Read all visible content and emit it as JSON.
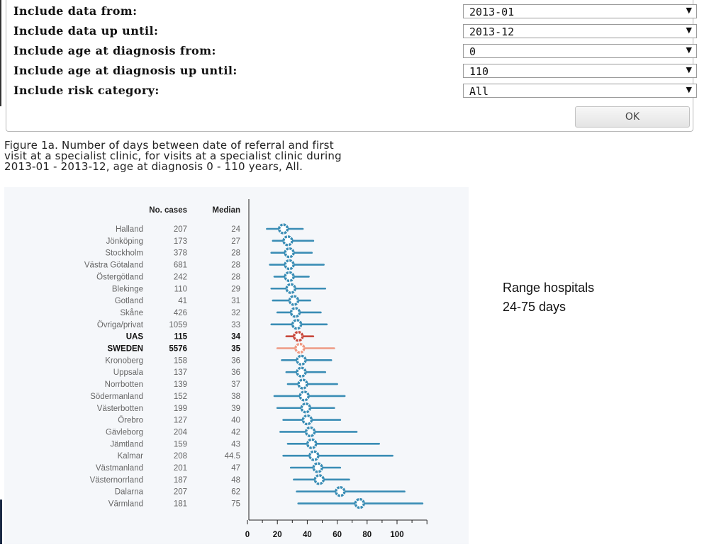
{
  "form": {
    "fields": [
      {
        "label": "Include data from:",
        "value": "2013-01"
      },
      {
        "label": "Include data up until:",
        "value": "2013-12"
      },
      {
        "label": "Include age at diagnosis from:",
        "value": "0"
      },
      {
        "label": "Include age at diagnosis up until:",
        "value": "110"
      },
      {
        "label": "Include risk category:",
        "value": "All"
      }
    ],
    "dropdown_arrow": "▼",
    "ok_label": "OK"
  },
  "caption": {
    "line1": "Figure 1a. Number of days between date of referral and first",
    "line2": "visit at a specialist clinic, for visits at a specialist clinic during",
    "line3": "2013-01 - 2013-12, age at diagnosis 0 - 110 years, All."
  },
  "note": {
    "line1": "Range hospitals",
    "line2": "24-75 days"
  },
  "chart_data": {
    "type": "scatter",
    "column_headers": {
      "cases": "No. cases",
      "median": "Median"
    },
    "x_ticks": [
      0,
      20,
      40,
      60,
      80,
      100
    ],
    "xlim": [
      0,
      120
    ],
    "colors": {
      "default": "#3a8db5",
      "uas": "#c8473b",
      "sweden": "#ef9a83"
    },
    "rows": [
      {
        "region": "Halland",
        "cases": "207",
        "median": "24",
        "median_value": 24,
        "low": 13,
        "high": 37
      },
      {
        "region": "Jönköping",
        "cases": "173",
        "median": "27",
        "median_value": 27,
        "low": 17,
        "high": 44
      },
      {
        "region": "Stockholm",
        "cases": "378",
        "median": "28",
        "median_value": 28,
        "low": 16,
        "high": 43
      },
      {
        "region": "Västra Götaland",
        "cases": "681",
        "median": "28",
        "median_value": 28,
        "low": 15,
        "high": 51
      },
      {
        "region": "Östergötland",
        "cases": "242",
        "median": "28",
        "median_value": 28,
        "low": 18,
        "high": 41
      },
      {
        "region": "Blekinge",
        "cases": "110",
        "median": "29",
        "median_value": 29,
        "low": 16,
        "high": 52
      },
      {
        "region": "Gotland",
        "cases": "41",
        "median": "31",
        "median_value": 31,
        "low": 17,
        "high": 42
      },
      {
        "region": "Skåne",
        "cases": "426",
        "median": "32",
        "median_value": 32,
        "low": 20,
        "high": 49
      },
      {
        "region": "Övriga/privat",
        "cases": "1059",
        "median": "33",
        "median_value": 33,
        "low": 16,
        "high": 53
      },
      {
        "region": "UAS",
        "cases": "115",
        "median": "34",
        "median_value": 34,
        "low": 26,
        "high": 44,
        "highlight": "uas"
      },
      {
        "region": "SWEDEN",
        "cases": "5576",
        "median": "35",
        "median_value": 35,
        "low": 20,
        "high": 58,
        "highlight": "sweden"
      },
      {
        "region": "Kronoberg",
        "cases": "158",
        "median": "36",
        "median_value": 36,
        "low": 23,
        "high": 56
      },
      {
        "region": "Uppsala",
        "cases": "137",
        "median": "36",
        "median_value": 36,
        "low": 26,
        "high": 52
      },
      {
        "region": "Norrbotten",
        "cases": "139",
        "median": "37",
        "median_value": 37,
        "low": 27,
        "high": 60
      },
      {
        "region": "Södermanland",
        "cases": "152",
        "median": "38",
        "median_value": 38,
        "low": 18,
        "high": 65
      },
      {
        "region": "Västerbotten",
        "cases": "199",
        "median": "39",
        "median_value": 39,
        "low": 20,
        "high": 58
      },
      {
        "region": "Örebro",
        "cases": "127",
        "median": "40",
        "median_value": 40,
        "low": 24,
        "high": 62
      },
      {
        "region": "Gävleborg",
        "cases": "204",
        "median": "42",
        "median_value": 42,
        "low": 22,
        "high": 73
      },
      {
        "region": "Jämtland",
        "cases": "159",
        "median": "43",
        "median_value": 43,
        "low": 27,
        "high": 88
      },
      {
        "region": "Kalmar",
        "cases": "208",
        "median": "44.5",
        "median_value": 44.5,
        "low": 24,
        "high": 97
      },
      {
        "region": "Västmanland",
        "cases": "201",
        "median": "47",
        "median_value": 47,
        "low": 29,
        "high": 62
      },
      {
        "region": "Västernorrland",
        "cases": "187",
        "median": "48",
        "median_value": 48,
        "low": 31,
        "high": 68
      },
      {
        "region": "Dalarna",
        "cases": "207",
        "median": "62",
        "median_value": 62,
        "low": 33,
        "high": 105
      },
      {
        "region": "Värmland",
        "cases": "181",
        "median": "75",
        "median_value": 75,
        "low": 34,
        "high": 117
      }
    ]
  }
}
